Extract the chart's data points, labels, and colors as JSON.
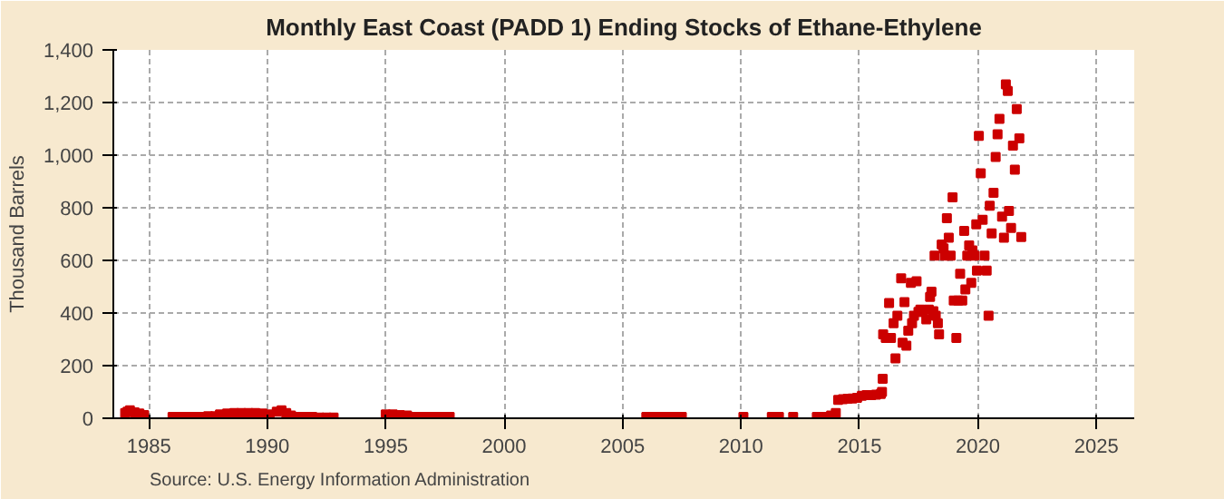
{
  "chart_data": {
    "type": "scatter",
    "title": "Monthly East Coast (PADD 1) Ending Stocks of Ethane-Ethylene",
    "ylabel": "Thousand Barrels",
    "annotations": [
      "Source: U.S. Energy Information Administration"
    ],
    "x": [
      1984.0,
      1984.1,
      1984.2,
      1984.4,
      1984.6,
      1984.8,
      1986.0,
      1986.3,
      1986.6,
      1986.9,
      1987.2,
      1987.5,
      1987.8,
      1988.0,
      1988.3,
      1988.6,
      1988.9,
      1989.2,
      1989.5,
      1989.8,
      1990.1,
      1990.4,
      1990.6,
      1990.8,
      1991.0,
      1991.3,
      1991.6,
      1991.9,
      1992.2,
      1992.5,
      1992.8,
      1995.0,
      1995.3,
      1995.6,
      1995.9,
      1996.2,
      1996.5,
      1996.8,
      1997.1,
      1997.4,
      1997.7,
      2006.0,
      2006.3,
      2006.6,
      2006.9,
      2007.2,
      2007.5,
      2010.1,
      2011.3,
      2011.6,
      2012.2,
      2013.2,
      2013.5,
      2013.8,
      2014.0,
      2014.1,
      2014.3,
      2014.5,
      2014.7,
      2014.9,
      2015.1,
      2015.3,
      2015.5,
      2015.7,
      2015.9,
      2015.95,
      2015.98,
      2016.0,
      2016.11,
      2016.25,
      2016.33,
      2016.44,
      2016.52,
      2016.6,
      2016.76,
      2016.82,
      2016.9,
      2016.98,
      2017.06,
      2017.17,
      2017.22,
      2017.3,
      2017.41,
      2017.49,
      2017.57,
      2017.66,
      2017.82,
      2017.93,
      2017.98,
      2018.04,
      2018.12,
      2018.17,
      2018.22,
      2018.31,
      2018.36,
      2018.47,
      2018.55,
      2018.6,
      2018.69,
      2018.77,
      2018.85,
      2018.93,
      2018.98,
      2019.09,
      2019.17,
      2019.25,
      2019.34,
      2019.42,
      2019.47,
      2019.55,
      2019.63,
      2019.72,
      2019.77,
      2019.85,
      2019.93,
      2019.96,
      2020.04,
      2020.12,
      2020.2,
      2020.28,
      2020.37,
      2020.45,
      2020.5,
      2020.58,
      2020.66,
      2020.75,
      2020.83,
      2020.91,
      2021.02,
      2021.1,
      2021.18,
      2021.26,
      2021.31,
      2021.4,
      2021.48,
      2021.56,
      2021.64,
      2021.75,
      2021.83
    ],
    "series": [
      {
        "color": "#cc0000",
        "values": [
          20,
          25,
          30,
          22,
          18,
          12,
          5,
          5,
          5,
          5,
          5,
          8,
          8,
          15,
          18,
          20,
          20,
          20,
          20,
          18,
          15,
          25,
          30,
          20,
          10,
          5,
          5,
          5,
          3,
          3,
          3,
          15,
          15,
          12,
          10,
          5,
          5,
          5,
          5,
          5,
          5,
          5,
          5,
          5,
          5,
          5,
          5,
          5,
          5,
          5,
          5,
          5,
          5,
          10,
          20,
          70,
          72,
          74,
          75,
          78,
          85,
          88,
          88,
          90,
          92,
          100,
          150,
          319,
          305,
          438,
          305,
          361,
          228,
          390,
          532,
          287,
          441,
          276,
          333,
          515,
          361,
          390,
          521,
          404,
          413,
          404,
          376,
          413,
          461,
          481,
          407,
          618,
          390,
          361,
          319,
          660,
          646,
          618,
          760,
          686,
          618,
          840,
          447,
          305,
          447,
          549,
          447,
          712,
          490,
          618,
          657,
          515,
          638,
          618,
          737,
          561,
          1073,
          931,
          754,
          618,
          561,
          390,
          808,
          703,
          857,
          993,
          1079,
          1138,
          766,
          686,
          1269,
          1244,
          788,
          723,
          1036,
          945,
          1175,
          1064,
          689
        ]
      }
    ],
    "xlim": [
      1983.5,
      2026.6
    ],
    "xticks": [
      1985,
      1990,
      1995,
      2000,
      2005,
      2010,
      2015,
      2020,
      2025
    ],
    "ylim": [
      0,
      1400
    ],
    "yticks": [
      {
        "value": 0,
        "label": "0"
      },
      {
        "value": 200,
        "label": "200"
      },
      {
        "value": 400,
        "label": "400"
      },
      {
        "value": 600,
        "label": "600"
      },
      {
        "value": 800,
        "label": "800"
      },
      {
        "value": 1000,
        "label": "1,000"
      },
      {
        "value": 1200,
        "label": "1,200"
      },
      {
        "value": 1400,
        "label": "1,400"
      }
    ],
    "grid": true,
    "marker": "square"
  }
}
